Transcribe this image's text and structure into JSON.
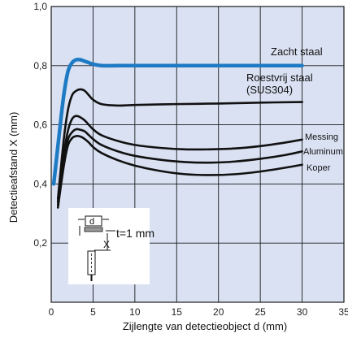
{
  "colors": {
    "plot_background": "#d9e1f2",
    "grid": "#1a1a1a",
    "highlight_series": "#1f7ac4",
    "series": "#111111"
  },
  "chart_data": {
    "type": "line",
    "title": "",
    "xlabel": "Zijlengte van detectieobject d (mm)",
    "ylabel": "Detectieafstand X (mm)",
    "xlim": [
      0,
      35
    ],
    "ylim": [
      0,
      1.0
    ],
    "xticks": [
      0,
      5,
      10,
      15,
      20,
      25,
      30,
      35
    ],
    "yticks": [
      0.2,
      0.4,
      0.6,
      0.8,
      1.0
    ],
    "xtick_labels": [
      "0",
      "5",
      "10",
      "15",
      "20",
      "25",
      "30",
      "35"
    ],
    "ytick_labels": [
      "0,2",
      "0,4",
      "0,6",
      "0,8",
      "1,0"
    ],
    "grid": true,
    "series": [
      {
        "name": "Zacht staal",
        "label_lines": [
          "Zacht staal"
        ],
        "highlight": true,
        "x": [
          0.3,
          1.0,
          1.5,
          2.0,
          2.5,
          3.0,
          3.5,
          4.0,
          4.5,
          5.0,
          6.0,
          8.0,
          10,
          15,
          20,
          25,
          30
        ],
        "y": [
          0.4,
          0.58,
          0.7,
          0.78,
          0.81,
          0.82,
          0.82,
          0.815,
          0.81,
          0.805,
          0.8,
          0.8,
          0.8,
          0.8,
          0.8,
          0.8,
          0.8
        ]
      },
      {
        "name": "Roestvrij staal (SUS304)",
        "label_lines": [
          "Roestvrij staal",
          "(SUS304)"
        ],
        "highlight": false,
        "x": [
          0.8,
          1.5,
          2.0,
          2.5,
          3.0,
          3.5,
          4.0,
          4.5,
          5.0,
          6.0,
          8.0,
          10,
          15,
          20,
          25,
          30
        ],
        "y": [
          0.35,
          0.55,
          0.65,
          0.7,
          0.715,
          0.72,
          0.715,
          0.7,
          0.685,
          0.67,
          0.665,
          0.667,
          0.67,
          0.672,
          0.675,
          0.677
        ]
      },
      {
        "name": "Messing",
        "label_lines": [
          "Messing"
        ],
        "highlight": false,
        "x": [
          0.8,
          1.5,
          2.0,
          2.5,
          3.0,
          3.5,
          4.0,
          4.5,
          5.0,
          6.0,
          8.0,
          10,
          13,
          16,
          19,
          22,
          25,
          28,
          30
        ],
        "y": [
          0.34,
          0.5,
          0.58,
          0.62,
          0.63,
          0.625,
          0.615,
          0.6,
          0.585,
          0.565,
          0.545,
          0.532,
          0.522,
          0.517,
          0.517,
          0.52,
          0.528,
          0.54,
          0.55
        ]
      },
      {
        "name": "Aluminum",
        "label_lines": [
          "Aluminum"
        ],
        "highlight": false,
        "x": [
          0.8,
          1.5,
          2.0,
          2.5,
          3.0,
          3.5,
          4.0,
          4.5,
          5.0,
          6.0,
          8.0,
          10,
          13,
          16,
          19,
          22,
          25,
          28,
          30
        ],
        "y": [
          0.33,
          0.48,
          0.55,
          0.575,
          0.585,
          0.583,
          0.578,
          0.565,
          0.552,
          0.532,
          0.51,
          0.495,
          0.482,
          0.474,
          0.472,
          0.476,
          0.485,
          0.498,
          0.51
        ]
      },
      {
        "name": "Koper",
        "label_lines": [
          "Koper"
        ],
        "highlight": false,
        "x": [
          0.8,
          1.5,
          2.0,
          2.5,
          3.0,
          3.5,
          4.0,
          4.5,
          5.0,
          6.0,
          8.0,
          10,
          13,
          16,
          19,
          22,
          25,
          28,
          30
        ],
        "y": [
          0.32,
          0.46,
          0.53,
          0.555,
          0.562,
          0.56,
          0.552,
          0.54,
          0.525,
          0.505,
          0.48,
          0.462,
          0.444,
          0.433,
          0.43,
          0.433,
          0.442,
          0.455,
          0.465
        ]
      }
    ],
    "inset": {
      "d_label": "d",
      "x_label": "X",
      "t_label": "t=1 mm"
    }
  }
}
